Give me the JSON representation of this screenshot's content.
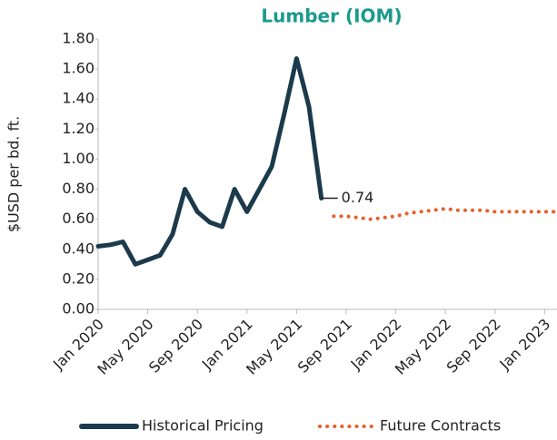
{
  "chart_data": {
    "type": "line",
    "title": "Lumber (IOM)",
    "y_label": "$USD per bd. ft.",
    "x": [
      "2020-01",
      "2020-02",
      "2020-03",
      "2020-04",
      "2020-05",
      "2020-06",
      "2020-07",
      "2020-08",
      "2020-09",
      "2020-10",
      "2020-11",
      "2020-12",
      "2021-01",
      "2021-02",
      "2021-03",
      "2021-04",
      "2021-05",
      "2021-06",
      "2021-07",
      "2021-08",
      "2021-09",
      "2021-10",
      "2021-11",
      "2021-12",
      "2022-01",
      "2022-02",
      "2022-03",
      "2022-04",
      "2022-05",
      "2022-06",
      "2022-07",
      "2022-08",
      "2022-09",
      "2022-10",
      "2022-11",
      "2022-12",
      "2023-01",
      "2023-02"
    ],
    "series": [
      {
        "name": "Historical Pricing",
        "color": "#1b3a4b",
        "values": [
          0.42,
          0.43,
          0.45,
          0.3,
          0.33,
          0.36,
          0.5,
          0.8,
          0.65,
          0.58,
          0.55,
          0.8,
          0.65,
          0.8,
          0.95,
          1.3,
          1.67,
          1.35,
          0.74,
          null,
          null,
          null,
          null,
          null,
          null,
          null,
          null,
          null,
          null,
          null,
          null,
          null,
          null,
          null,
          null,
          null,
          null,
          null
        ],
        "style": "solid",
        "label_index": 18
      },
      {
        "name": "Future Contracts",
        "color": "#e8602c",
        "values": [
          null,
          null,
          null,
          null,
          null,
          null,
          null,
          null,
          null,
          null,
          null,
          null,
          null,
          null,
          null,
          null,
          null,
          null,
          null,
          0.62,
          0.62,
          0.61,
          0.6,
          0.61,
          0.62,
          0.64,
          0.65,
          0.66,
          0.67,
          0.66,
          0.66,
          0.66,
          0.65,
          0.65,
          0.65,
          0.65,
          0.65,
          0.65
        ],
        "style": "dotted"
      }
    ],
    "xlim": [
      "2020-01",
      "2023-02"
    ],
    "xticks": [
      {
        "value": "2020-01",
        "label": "Jan 2020"
      },
      {
        "value": "2020-05",
        "label": "May 2020"
      },
      {
        "value": "2020-09",
        "label": "Sep 2020"
      },
      {
        "value": "2021-01",
        "label": "Jan 2021"
      },
      {
        "value": "2021-05",
        "label": "May 2021"
      },
      {
        "value": "2021-09",
        "label": "Sep 2021"
      },
      {
        "value": "2022-01",
        "label": "Jan 2022"
      },
      {
        "value": "2022-05",
        "label": "May 2022"
      },
      {
        "value": "2022-09",
        "label": "Sep 2022"
      },
      {
        "value": "2023-01",
        "label": "Jan 2023"
      }
    ],
    "ylim": [
      0,
      1.8
    ],
    "yticks": [
      {
        "value": 0,
        "label": "0.00"
      },
      {
        "value": 0.2,
        "label": "0.20"
      },
      {
        "value": 0.4,
        "label": "0.40"
      },
      {
        "value": 0.6,
        "label": "0.60"
      },
      {
        "value": 0.8,
        "label": "0.80"
      },
      {
        "value": 1.0,
        "label": "1.00"
      },
      {
        "value": 1.2,
        "label": "1.20"
      },
      {
        "value": 1.4,
        "label": "1.40"
      },
      {
        "value": 1.6,
        "label": "1.60"
      },
      {
        "value": 1.8,
        "label": "1.80"
      }
    ],
    "grid": false,
    "legend": "bottom"
  }
}
